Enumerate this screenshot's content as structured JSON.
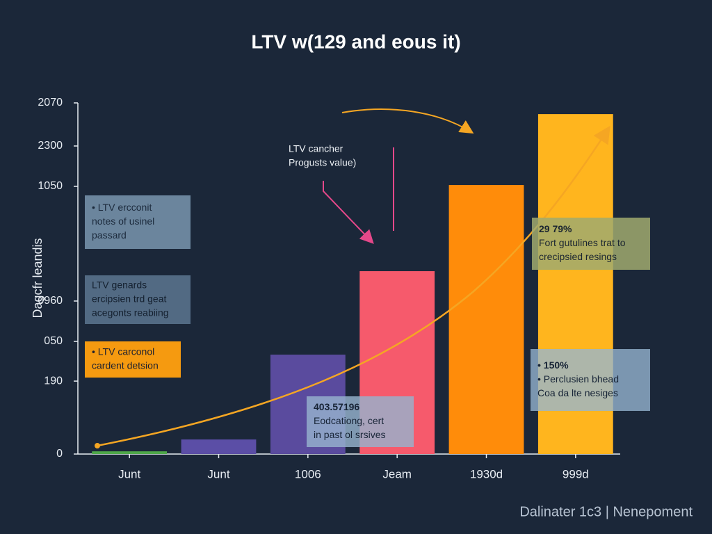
{
  "chart_data": {
    "type": "bar",
    "title": "LTV w(129 and eous it)",
    "y_label": "Dagcfr leandis",
    "footer": "Dalinater 1c3 | Nenepoment",
    "categories": [
      "Junt",
      "Junt",
      "1006",
      "Jeam",
      "1930d",
      "999d"
    ],
    "values": [
      16,
      86,
      586,
      1078,
      1586,
      2004
    ],
    "colors": [
      "#4fa84a",
      "#5b4ea6",
      "#5a4b9e",
      "#f65a6c",
      "#ff8c0a",
      "#ffb51e"
    ],
    "ylim": [
      0,
      2070
    ],
    "yticks": [
      0,
      {
        "value": 430,
        "label": "190"
      },
      {
        "value": 664,
        "label": "050"
      },
      {
        "value": 902,
        "label": "0960"
      },
      {
        "value": 1578,
        "label": "1050"
      },
      {
        "value": 1816,
        "label": "2300"
      },
      2070
    ],
    "annotations": [
      {
        "lines": [
          "• LTV ercconit",
          "notes of usinel",
          "passard"
        ]
      },
      {
        "lines": [
          "LTV genards",
          "ercipsien trd geat",
          "acegonts reabiing"
        ]
      },
      {
        "lines": [
          "• LTV carconol",
          "cardent detsion"
        ]
      },
      {
        "lines": [
          "LTV cancher",
          "Progusts value)"
        ]
      },
      {
        "lines": [
          "403.57196",
          "Eodcationg, cert",
          "in past ol srsives"
        ]
      },
      {
        "lines": [
          "29 79%",
          "Fort gutulines trat to",
          "crecipsied resings"
        ]
      },
      {
        "lines": [
          "• 150%",
          "• Perclusien bhead",
          "Coa da lte nesiges"
        ]
      }
    ]
  }
}
